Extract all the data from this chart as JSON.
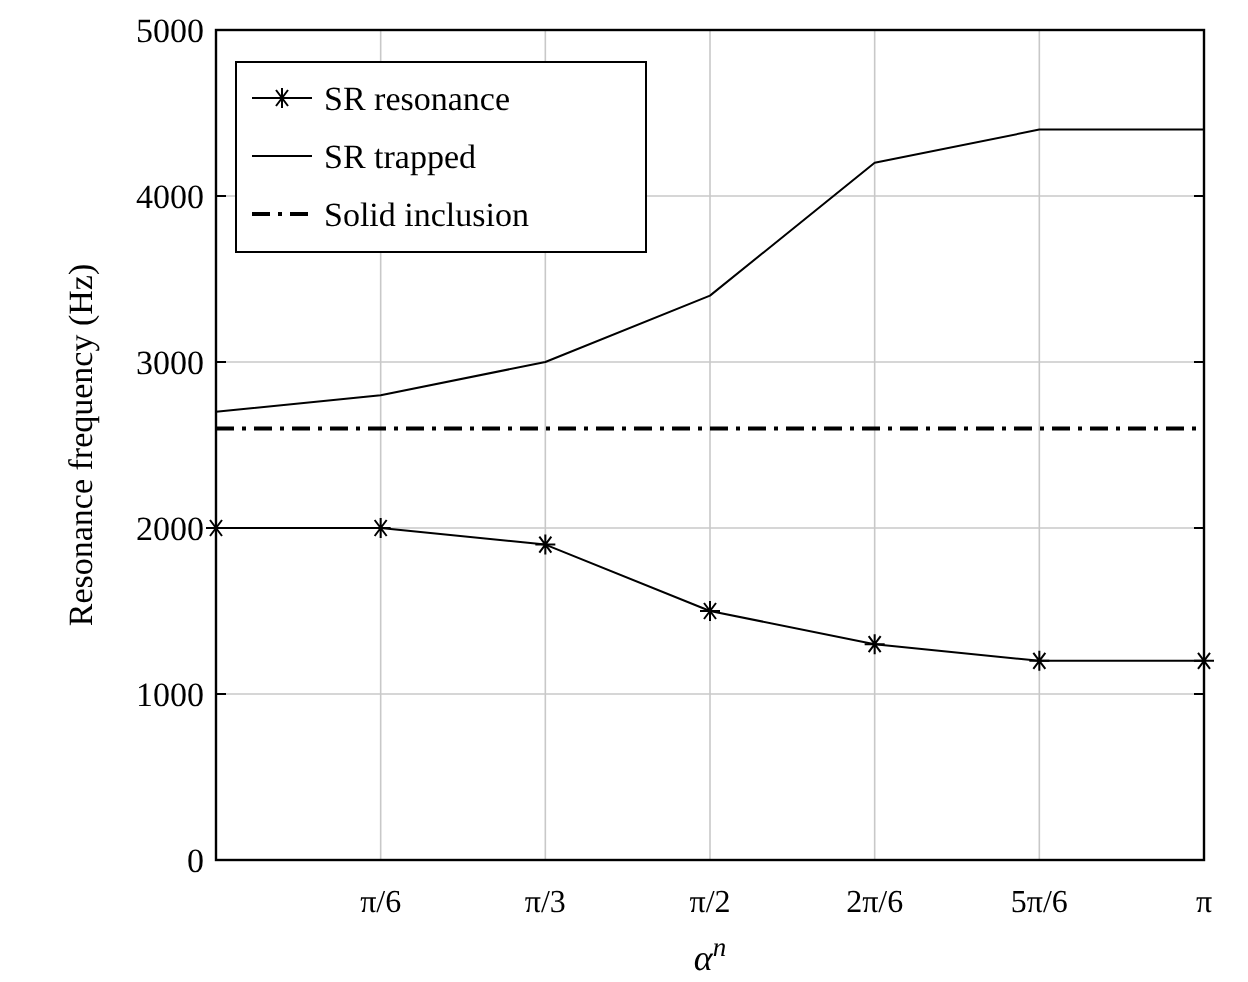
{
  "chart_data": {
    "type": "line",
    "xlabel": "α$^{n}$",
    "ylabel": "Resonance frequency (Hz)",
    "categories": [
      null,
      "π/6",
      "π/3",
      "π/2",
      "2π/6",
      "5π/6",
      "π"
    ],
    "series": [
      {
        "name": "SR resonance",
        "color": "#000000",
        "marker": "cross",
        "line_style": "solid",
        "values": [
          2000,
          2000,
          1900,
          1500,
          1300,
          1200,
          1200
        ]
      },
      {
        "name": "SR trapped",
        "color": "#000000",
        "marker": "none",
        "line_style": "solid",
        "values": [
          2700,
          2800,
          3000,
          3400,
          4200,
          4400,
          4400
        ]
      },
      {
        "name": "Solid inclusion",
        "color": "#000000",
        "marker": "none",
        "line_style": "dashdot",
        "values": [
          2600,
          2600,
          2600,
          2600,
          2600,
          2600,
          2600
        ]
      }
    ],
    "ylim": [
      0,
      5000
    ],
    "yticks": [
      0,
      1000,
      2000,
      3000,
      4000,
      5000
    ],
    "grid": true,
    "legend": "top left"
  }
}
